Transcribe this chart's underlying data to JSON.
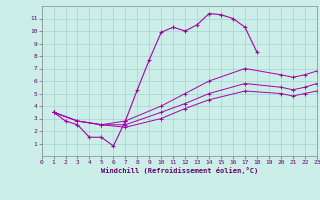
{
  "xlabel": "Windchill (Refroidissement éolien,°C)",
  "bg_color": "#cceee8",
  "line_color": "#aa00aa",
  "xlim": [
    0,
    23
  ],
  "ylim": [
    0,
    12
  ],
  "xticks": [
    0,
    1,
    2,
    3,
    4,
    5,
    6,
    7,
    8,
    9,
    10,
    11,
    12,
    13,
    14,
    15,
    16,
    17,
    18,
    19,
    20,
    21,
    22,
    23
  ],
  "yticks": [
    1,
    2,
    3,
    4,
    5,
    6,
    7,
    8,
    9,
    10,
    11
  ],
  "line1_x": [
    1,
    2,
    3,
    4,
    5,
    6,
    7,
    8,
    9,
    10,
    11,
    12,
    13,
    14,
    15,
    16,
    17,
    18
  ],
  "line1_y": [
    3.5,
    2.8,
    2.5,
    1.5,
    1.5,
    0.8,
    2.8,
    5.3,
    7.7,
    9.9,
    10.3,
    10.0,
    10.5,
    11.4,
    11.3,
    11.0,
    10.3,
    8.3
  ],
  "line2_x": [
    1,
    3,
    5,
    7,
    10,
    12,
    14,
    17,
    20,
    21,
    22,
    23
  ],
  "line2_y": [
    3.5,
    2.8,
    2.5,
    2.8,
    4.0,
    5.0,
    6.0,
    7.0,
    6.5,
    6.3,
    6.5,
    6.8
  ],
  "line3_x": [
    1,
    3,
    5,
    7,
    10,
    12,
    14,
    17,
    20,
    21,
    22,
    23
  ],
  "line3_y": [
    3.5,
    2.8,
    2.5,
    2.5,
    3.5,
    4.2,
    5.0,
    5.8,
    5.5,
    5.3,
    5.5,
    5.8
  ],
  "line4_x": [
    1,
    3,
    5,
    7,
    10,
    12,
    14,
    17,
    20,
    21,
    22,
    23
  ],
  "line4_y": [
    3.5,
    2.8,
    2.5,
    2.3,
    3.0,
    3.8,
    4.5,
    5.2,
    5.0,
    4.8,
    5.0,
    5.2
  ]
}
